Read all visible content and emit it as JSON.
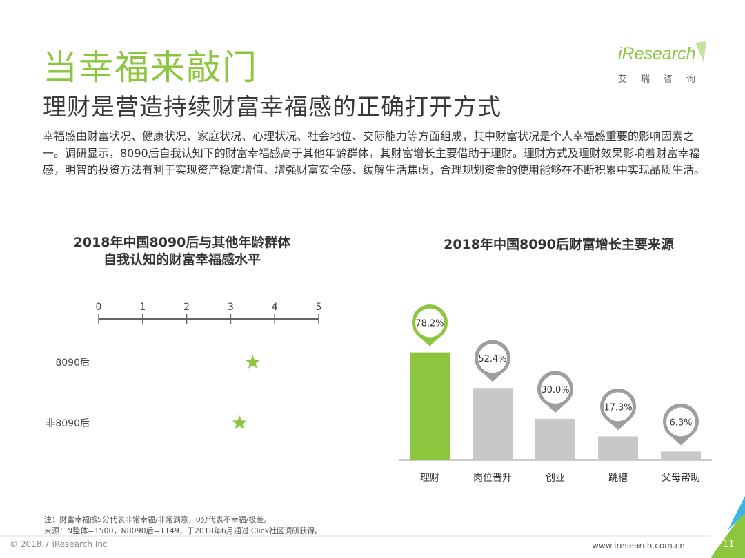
{
  "header": {
    "title": "当幸福来敲门",
    "subtitle": "理财是营造持续财富幸福感的正确打开方式"
  },
  "logo": {
    "text": "iResearch",
    "sub": "艾瑞咨询"
  },
  "body": "幸福感由财富状况、健康状况、家庭状况、心理状况、社会地位、交际能力等方面组成，其中财富状况是个人幸福感重要的影响因素之一。调研显示，8090后自我认知下的财富幸福感高于其他年龄群体，其财富增长主要借助于理财。理财方式及理财效果影响着财富幸福感，明智的投资方法有利于实现资产稳定增值、增强财富安全感、缓解生活焦虑，合理规划资金的使用能够在不断积累中实现品质生活。",
  "colors": {
    "accent": "#8cc63f",
    "bar_gray": "#c8c8c8",
    "pin_gray": "#9e9e9e",
    "axis": "#666666"
  },
  "chart_data": [
    {
      "type": "scatter",
      "title": [
        "2018年中国8090后与其他年龄群体",
        "自我认知的财富幸福感水平"
      ],
      "x_ticks": [
        "0",
        "1",
        "2",
        "3",
        "4",
        "5"
      ],
      "xlim": [
        0,
        5
      ],
      "marker": "star",
      "points": [
        {
          "label": "8090后",
          "value": 3.5
        },
        {
          "label": "非8090后",
          "value": 3.2
        }
      ]
    },
    {
      "type": "bar",
      "title": "2018年中国8090后财富增长主要来源",
      "categories": [
        "理财",
        "岗位晋升",
        "创业",
        "跳槽",
        "父母帮助"
      ],
      "values": [
        78.2,
        52.4,
        30.0,
        17.3,
        6.3
      ],
      "value_labels": [
        "78.2%",
        "52.4%",
        "30.0%",
        "17.3%",
        "6.3%"
      ],
      "highlight_index": 0
    }
  ],
  "notes": {
    "note": "注：财富幸福感5分代表非常幸福/非常满意，0分代表不幸福/极差。",
    "source": "来源：N整体=1500，N8090后=1149，于2018年6月通过iClick社区调研获得。"
  },
  "footer": {
    "left": "© 2018.7 iResearch Inc",
    "right": "www.iresearch.com.cn",
    "page": "11"
  }
}
